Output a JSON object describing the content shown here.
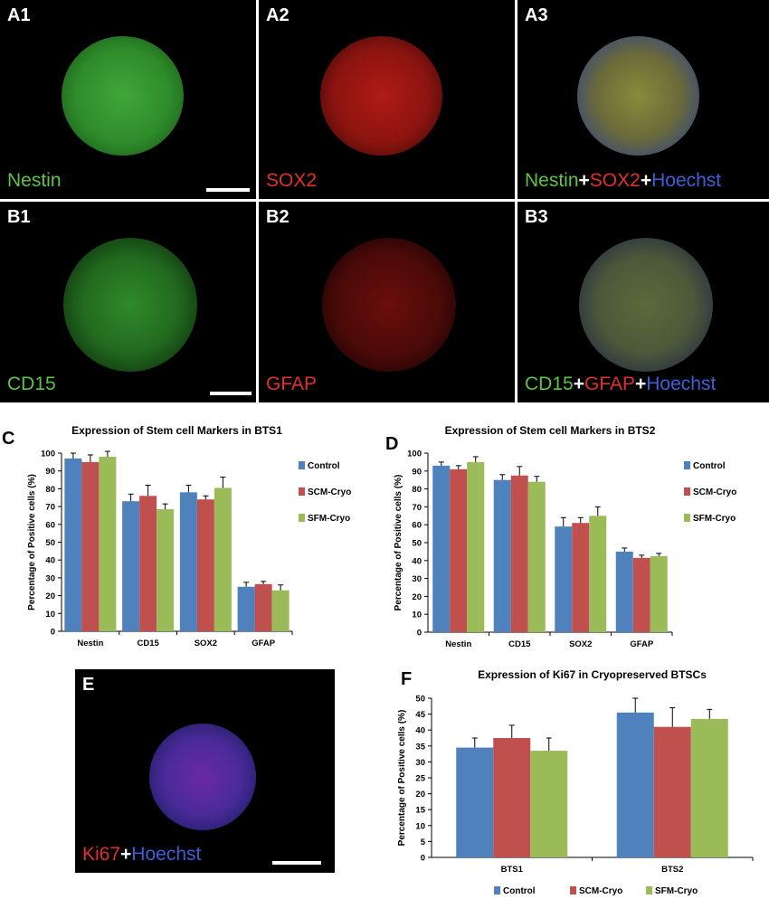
{
  "panels": {
    "A1": {
      "label": "A1",
      "caption": [
        {
          "text": "Nestin",
          "color": "#5ec24a"
        }
      ]
    },
    "A2": {
      "label": "A2",
      "caption": [
        {
          "text": "SOX2",
          "color": "#e0302a"
        }
      ]
    },
    "A3": {
      "label": "A3",
      "caption": [
        {
          "text": "Nestin",
          "color": "#5ec24a"
        },
        {
          "text": "+",
          "color": "#ffffff"
        },
        {
          "text": "SOX2",
          "color": "#e0302a"
        },
        {
          "text": "+",
          "color": "#ffffff"
        },
        {
          "text": "Hoechst",
          "color": "#3f5fd8"
        }
      ]
    },
    "B1": {
      "label": "B1",
      "caption": [
        {
          "text": "CD15",
          "color": "#5ec24a"
        }
      ]
    },
    "B2": {
      "label": "B2",
      "caption": [
        {
          "text": "GFAP",
          "color": "#e0302a"
        }
      ]
    },
    "B3": {
      "label": "B3",
      "caption": [
        {
          "text": "CD15",
          "color": "#5ec24a"
        },
        {
          "text": "+",
          "color": "#ffffff"
        },
        {
          "text": "GFAP",
          "color": "#e0302a"
        },
        {
          "text": "+",
          "color": "#ffffff"
        },
        {
          "text": "Hoechst",
          "color": "#3f5fd8"
        }
      ]
    },
    "E": {
      "label": "E",
      "caption": [
        {
          "text": "Ki67",
          "color": "#e0302a"
        },
        {
          "text": "+",
          "color": "#ffffff"
        },
        {
          "text": "Hoechst",
          "color": "#3f5fd8"
        }
      ]
    }
  },
  "chart_letters": {
    "C": "C",
    "D": "D",
    "F": "F"
  },
  "chart_data": [
    {
      "id": "C",
      "type": "bar",
      "title": "Expression of Stem cell Markers in BTS1",
      "ylabel": "Percentage of Positive cells (%)",
      "xlabel": "",
      "ylim": [
        0,
        100
      ],
      "yticks": [
        0,
        10,
        20,
        30,
        40,
        50,
        60,
        70,
        80,
        90,
        100
      ],
      "categories": [
        "Nestin",
        "CD15",
        "SOX2",
        "GFAP"
      ],
      "series": [
        {
          "name": "Control",
          "color": "#4f81bd",
          "values": [
            97,
            73,
            78,
            25
          ],
          "errors": [
            3,
            4,
            4,
            2.5
          ]
        },
        {
          "name": "SCM-Cryo",
          "color": "#c0504d",
          "values": [
            95,
            76,
            74,
            26.5
          ],
          "errors": [
            4,
            6,
            2,
            1.5
          ]
        },
        {
          "name": "SFM-Cryo",
          "color": "#9bbb59",
          "values": [
            98,
            68.5,
            80.5,
            23
          ],
          "errors": [
            3,
            3,
            6,
            3
          ]
        }
      ],
      "legend_position": "right",
      "grid": false
    },
    {
      "id": "D",
      "type": "bar",
      "title": "Expression of Stem cell Markers in BTS2",
      "ylabel": "Percentage of Positive cells (%)",
      "xlabel": "",
      "ylim": [
        0,
        100
      ],
      "yticks": [
        0,
        10,
        20,
        30,
        40,
        50,
        60,
        70,
        80,
        90,
        100
      ],
      "categories": [
        "Nestin",
        "CD15",
        "SOX2",
        "GFAP"
      ],
      "series": [
        {
          "name": "Control",
          "color": "#4f81bd",
          "values": [
            93,
            85,
            59,
            45
          ],
          "errors": [
            2,
            3,
            5,
            2
          ]
        },
        {
          "name": "SCM-Cryo",
          "color": "#c0504d",
          "values": [
            91,
            87.5,
            61,
            41.5
          ],
          "errors": [
            2,
            5,
            3,
            1.5
          ]
        },
        {
          "name": "SFM-Cryo",
          "color": "#9bbb59",
          "values": [
            95,
            84,
            65,
            42.5
          ],
          "errors": [
            3,
            3,
            5,
            1.5
          ]
        }
      ],
      "legend_position": "right",
      "grid": false
    },
    {
      "id": "F",
      "type": "bar",
      "title": "Expression of Ki67 in Cryopreserved BTSCs",
      "ylabel": "Percentage of Positive cells (%)",
      "xlabel": "",
      "ylim": [
        0,
        50
      ],
      "yticks": [
        0,
        5,
        10,
        15,
        20,
        25,
        30,
        35,
        40,
        45,
        50
      ],
      "categories": [
        "BTS1",
        "BTS2"
      ],
      "series": [
        {
          "name": "Control",
          "color": "#4f81bd",
          "values": [
            34.5,
            45.5
          ],
          "errors": [
            3,
            4.5
          ]
        },
        {
          "name": "SCM-Cryo",
          "color": "#c0504d",
          "values": [
            37.5,
            41
          ],
          "errors": [
            4,
            6
          ]
        },
        {
          "name": "SFM-Cryo",
          "color": "#9bbb59",
          "values": [
            33.5,
            43.5
          ],
          "errors": [
            4,
            3
          ]
        }
      ],
      "legend_position": "bottom",
      "grid": false
    }
  ]
}
